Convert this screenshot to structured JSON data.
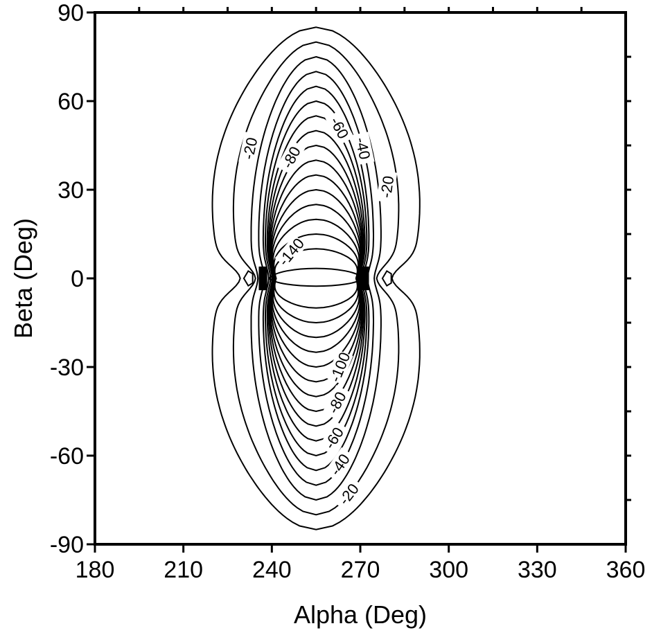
{
  "chart_data": {
    "type": "contour",
    "xlabel": "Alpha (Deg)",
    "ylabel": "Beta (Deg)",
    "xlim": [
      180,
      360
    ],
    "ylim": [
      -90,
      90
    ],
    "xticks": [
      180,
      210,
      240,
      270,
      300,
      330,
      360
    ],
    "yticks": [
      90,
      60,
      30,
      0,
      -30,
      -60,
      -90
    ],
    "xtick_labels": [
      "180",
      "210",
      "240",
      "270",
      "300",
      "330",
      "360"
    ],
    "ytick_labels": [
      "90",
      "60",
      "30",
      "0",
      "-30",
      "-60",
      "-90"
    ],
    "grid": false,
    "center": {
      "alpha": 255,
      "beta": 0
    },
    "contour_levels": [
      -20,
      -30,
      -40,
      -50,
      -60,
      -70,
      -80,
      -90,
      -100,
      -110,
      -120,
      -130,
      -140,
      -150,
      -160,
      -170
    ],
    "contours": [
      {
        "level": -20,
        "alpha_half_width": 32,
        "beta_extent": 85
      },
      {
        "level": -30,
        "alpha_half_width": 25.5,
        "beta_extent": 80
      },
      {
        "level": -40,
        "alpha_half_width": 21.5,
        "beta_extent": 75
      },
      {
        "level": -50,
        "alpha_half_width": 19,
        "beta_extent": 70
      },
      {
        "level": -60,
        "alpha_half_width": 17.5,
        "beta_extent": 65
      },
      {
        "level": -70,
        "alpha_half_width": 16.8,
        "beta_extent": 60
      },
      {
        "level": -80,
        "alpha_half_width": 16.2,
        "beta_extent": 55
      },
      {
        "level": -90,
        "alpha_half_width": 15.8,
        "beta_extent": 50
      },
      {
        "level": -100,
        "alpha_half_width": 15.5,
        "beta_extent": 45
      },
      {
        "level": -110,
        "alpha_half_width": 15.3,
        "beta_extent": 40
      },
      {
        "level": -120,
        "alpha_half_width": 15.1,
        "beta_extent": 35
      },
      {
        "level": -130,
        "alpha_half_width": 15,
        "beta_extent": 30
      },
      {
        "level": -140,
        "alpha_half_width": 14.9,
        "beta_extent": 25
      },
      {
        "level": -150,
        "alpha_half_width": 14.8,
        "beta_extent": 20
      },
      {
        "level": -160,
        "alpha_half_width": 14.7,
        "beta_extent": 15
      },
      {
        "level": -170,
        "alpha_half_width": 14.6,
        "beta_extent": 10
      }
    ],
    "inner_closed_contour": {
      "alpha_range": [
        239,
        271
      ],
      "beta_range": [
        -3.5,
        4.5
      ]
    },
    "side_islands": [
      {
        "alpha": 232,
        "beta": 0,
        "alpha_half_width": 1.5,
        "beta_extent": 2.5
      },
      {
        "alpha": 279,
        "beta": 0,
        "alpha_half_width": 1.5,
        "beta_extent": 2.5
      }
    ],
    "contour_labels": [
      {
        "text": "-20",
        "alpha": 232.5,
        "beta": 44,
        "angle": -78
      },
      {
        "text": "-80",
        "alpha": 246.5,
        "beta": 41,
        "angle": -62
      },
      {
        "text": "-60",
        "alpha": 263,
        "beta": 51,
        "angle": 62
      },
      {
        "text": "-40",
        "alpha": 271,
        "beta": 44,
        "angle": 78
      },
      {
        "text": "-20",
        "alpha": 279,
        "beta": 31,
        "angle": -82
      },
      {
        "text": "-140",
        "alpha": 246.5,
        "beta": 9,
        "angle": -50
      },
      {
        "text": "-100",
        "alpha": 263,
        "beta": -30,
        "angle": -68
      },
      {
        "text": "-80",
        "alpha": 262,
        "beta": -42,
        "angle": -63
      },
      {
        "text": "-60",
        "alpha": 261,
        "beta": -54,
        "angle": -58
      },
      {
        "text": "-40",
        "alpha": 263,
        "beta": -63,
        "angle": -55
      },
      {
        "text": "-20",
        "alpha": 266,
        "beta": -73,
        "angle": -52
      }
    ]
  }
}
